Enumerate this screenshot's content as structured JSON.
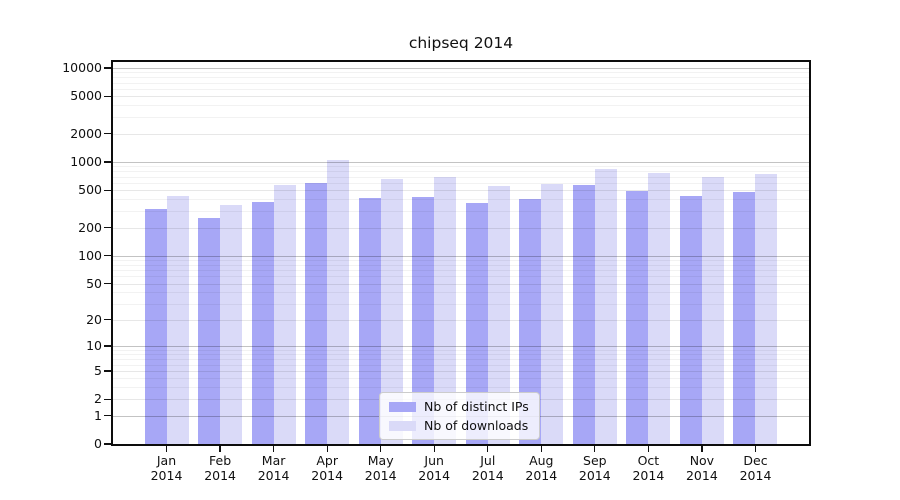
{
  "figure": {
    "title": "chipseq 2014"
  },
  "chart_data": {
    "type": "bar",
    "title": "chipseq 2014",
    "categories": [
      "Jan",
      "Feb",
      "Mar",
      "Apr",
      "May",
      "Jun",
      "Jul",
      "Aug",
      "Sep",
      "Oct",
      "Nov",
      "Dec"
    ],
    "x_year_label": "2014",
    "series": [
      {
        "name": "Nb of distinct IPs",
        "color": "#a7a7f6",
        "values": [
          315,
          255,
          375,
          600,
          410,
          420,
          365,
          400,
          565,
          490,
          430,
          475
        ]
      },
      {
        "name": "Nb of downloads",
        "color": "#dadaf8",
        "values": [
          435,
          350,
          570,
          1050,
          660,
          690,
          550,
          580,
          840,
          760,
          685,
          745
        ]
      }
    ],
    "yscale": "symlog (linear 0-1, logarithmic above 1)",
    "y_ticks": [
      0,
      1,
      2,
      5,
      10,
      20,
      50,
      100,
      200,
      500,
      1000,
      2000,
      5000,
      10000
    ],
    "ylim": [
      0,
      11600
    ],
    "grid": "horizontal major and minor gridlines, drawn over bars",
    "legend_position": "lower center",
    "bar_layout": "paired bars per month, distinct-IPs bar left, downloads bar right"
  },
  "style_colors": {
    "bar_distinct_ips": "#a7a7f6",
    "bar_downloads": "#dadaf8",
    "axis_spine": "#0d0d0d",
    "background": "#ffffff"
  }
}
